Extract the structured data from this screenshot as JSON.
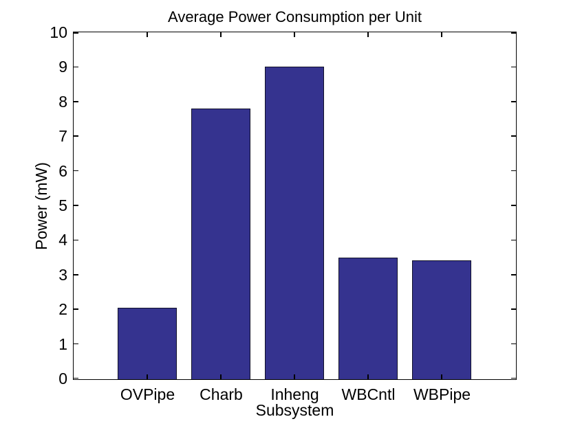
{
  "chart_data": {
    "type": "bar",
    "title": "Average Power Consumption per Unit",
    "xlabel": "Subsystem",
    "ylabel": "Power (mW)",
    "categories": [
      "OVPipe",
      "Charb",
      "Inheng",
      "WBCntl",
      "WBPipe"
    ],
    "values": [
      2.07,
      7.82,
      9.02,
      3.51,
      3.44
    ],
    "ylim": [
      0,
      10
    ],
    "yticks": [
      0,
      1,
      2,
      3,
      4,
      5,
      6,
      7,
      8,
      9,
      10
    ],
    "ytick_labels": [
      "0",
      "1",
      "2",
      "3",
      "4",
      "5",
      "6",
      "7",
      "8",
      "9",
      "10"
    ],
    "xlim": [
      0,
      6
    ],
    "bar_width_frac": 0.8,
    "grid": "off",
    "legend": "none",
    "tick_direction": "in",
    "colors": {
      "bar_fill": "#35338f",
      "bar_edge": "#101028",
      "axis": "#000000",
      "background": "#ffffff",
      "text": "#000000"
    }
  }
}
